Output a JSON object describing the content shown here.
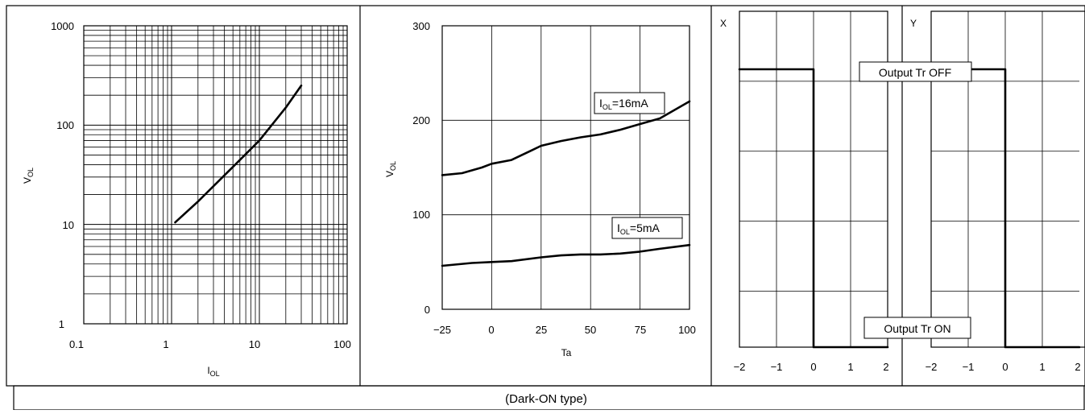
{
  "caption": "(Dark-ON type)",
  "chart_data": [
    {
      "type": "line",
      "scale": "log-log",
      "title": "",
      "xlabel": "I_OL",
      "ylabel": "V_OL",
      "xlim": [
        0.1,
        100
      ],
      "ylim": [
        1,
        1000
      ],
      "x_ticks": [
        "0.1",
        "1",
        "10",
        "100"
      ],
      "y_ticks": [
        "1",
        "10",
        "100",
        "1000"
      ],
      "grid": true,
      "series": [
        {
          "x": [
            1.1,
            2,
            5,
            10,
            20,
            30
          ],
          "y": [
            10.5,
            17,
            38,
            70,
            150,
            250
          ]
        }
      ]
    },
    {
      "type": "line",
      "title": "",
      "xlabel": "Ta",
      "ylabel": "V_OL",
      "xlim": [
        -25,
        100
      ],
      "ylim": [
        0,
        300
      ],
      "x_ticks": [
        "−25",
        "0",
        "25",
        "50",
        "75",
        "100"
      ],
      "y_ticks": [
        "0",
        "100",
        "200",
        "300"
      ],
      "grid": true,
      "series": [
        {
          "name": "IOL=16mA",
          "label_main": "I",
          "label_sub": "OL",
          "label_rest": "=16mA",
          "x": [
            -25,
            -15,
            -5,
            0,
            10,
            20,
            25,
            35,
            45,
            55,
            65,
            75,
            85,
            100
          ],
          "y": [
            142,
            144,
            150,
            154,
            158,
            168,
            173,
            178,
            182,
            185,
            190,
            196,
            202,
            220
          ]
        },
        {
          "name": "IOL=5mA",
          "label_main": "I",
          "label_sub": "OL",
          "label_rest": "=5mA",
          "x": [
            -25,
            -10,
            0,
            10,
            25,
            35,
            45,
            55,
            65,
            75,
            85,
            100
          ],
          "y": [
            46,
            49,
            50,
            51,
            55,
            57,
            58,
            58,
            59,
            61,
            64,
            68
          ]
        }
      ]
    },
    {
      "type": "line",
      "title": "X",
      "x_ticks": [
        "−2",
        "−1",
        "0",
        "1",
        "2"
      ],
      "xlim": [
        -2,
        2
      ],
      "grid": true,
      "series": [
        {
          "x": [
            -2,
            0,
            0,
            2
          ],
          "level": [
            1,
            1,
            0,
            0
          ]
        }
      ]
    },
    {
      "type": "line",
      "title": "Y",
      "x_ticks": [
        "−2",
        "−1",
        "0",
        "1",
        "2"
      ],
      "xlim": [
        -2,
        2
      ],
      "grid": true,
      "series": [
        {
          "x": [
            -2,
            0,
            0,
            2
          ],
          "level": [
            1,
            1,
            0,
            0
          ]
        }
      ]
    }
  ],
  "annotations": {
    "off_label": "Output Tr OFF",
    "on_label": "Output Tr ON"
  }
}
